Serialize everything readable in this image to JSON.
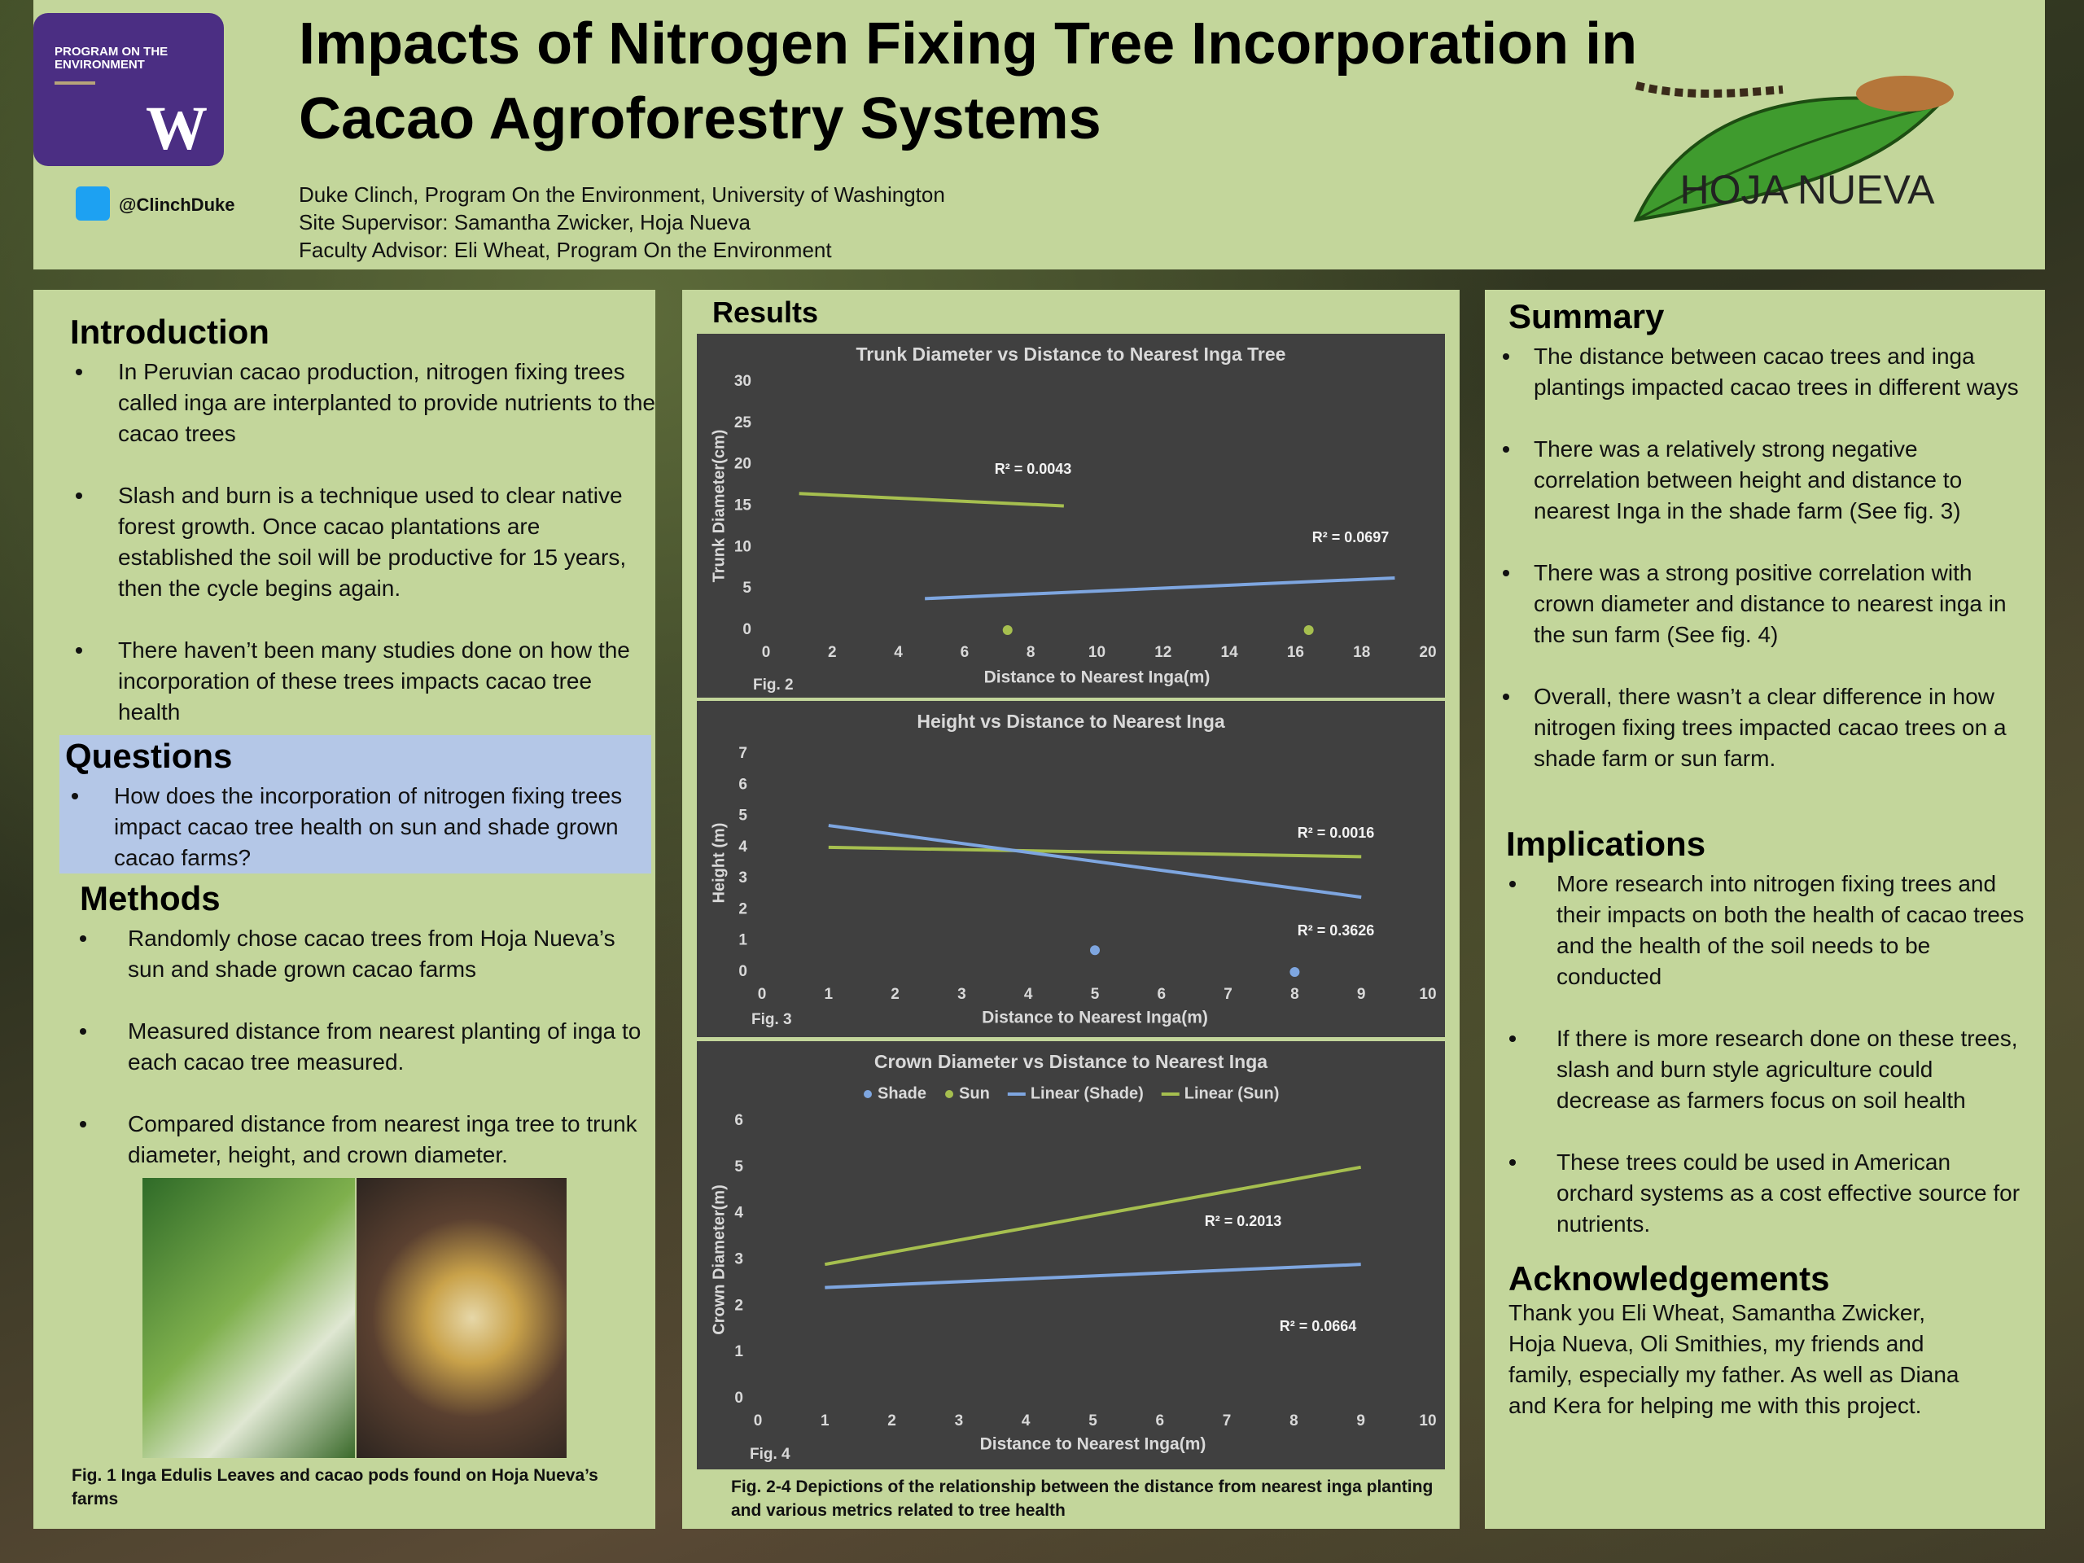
{
  "header": {
    "title_lines": [
      "Impacts of Nitrogen Fixing Tree Incorporation in",
      "Cacao Agroforestry Systems"
    ],
    "authors": [
      "Duke Clinch, Program On the Environment, University of Washington",
      "Site Supervisor: Samantha Zwicker, Hoja Nueva",
      "Faculty Advisor: Eli Wheat, Program On the Environment"
    ],
    "twitter": "@ClinchDuke",
    "uw_logo_text": "PROGRAM ON THE ENVIRONMENT",
    "uw_logo_letter": "W",
    "partner_logo_text": "HOJA NUEVA"
  },
  "introduction": {
    "heading": "Introduction",
    "bullets": [
      "In Peruvian cacao production, nitrogen fixing trees called inga are interplanted to provide nutrients to the cacao trees",
      "Slash and burn is a technique used to clear native forest growth. Once cacao plantations are established the soil will be productive for 15 years, then the cycle begins again.",
      "There haven’t been many studies done on how the incorporation of these trees impacts cacao tree health"
    ]
  },
  "questions": {
    "heading": "Questions",
    "bullets": [
      "How does the incorporation of nitrogen fixing trees impact cacao tree health on sun and shade grown cacao farms?"
    ]
  },
  "methods": {
    "heading": "Methods",
    "bullets": [
      "Randomly chose cacao trees from  Hoja Nueva’s sun and shade grown cacao farms",
      "Measured distance from nearest planting of inga to each cacao tree measured.",
      "Compared distance from nearest inga tree to trunk diameter, height, and crown diameter."
    ]
  },
  "figure1": {
    "caption": "Fig. 1 Inga Edulis Leaves and cacao pods found on Hoja Nueva’s farms"
  },
  "results": {
    "heading": "Results",
    "caption": "Fig. 2-4 Depictions of the relationship between the distance from nearest inga planting and various metrics related to tree health"
  },
  "summary": {
    "heading": "Summary",
    "bullets": [
      "The distance between cacao trees and inga plantings impacted cacao trees in different ways",
      "There was a relatively strong negative correlation between height and distance to nearest Inga in the shade farm (See fig. 3)",
      "There was a strong positive correlation with crown diameter and distance to nearest inga in the sun farm (See fig. 4)",
      "Overall, there wasn’t a clear difference in how nitrogen fixing trees impacted cacao trees on a shade farm or sun farm."
    ]
  },
  "implications": {
    "heading": "Implications",
    "bullets": [
      "More research into nitrogen fixing trees and their impacts on both the health of cacao trees and the health of the soil needs to be conducted",
      "If there is more research done on these trees, slash and burn style agriculture could decrease as farmers focus on soil health",
      "These trees could be used in American orchard systems as a cost effective source for nutrients."
    ]
  },
  "acknowledgements": {
    "heading": "Acknowledgements",
    "text": "Thank you Eli Wheat, Samantha Zwicker, Hoja Nueva, Oli Smithies, my friends and family, especially my father. As well as Diana and Kera for helping me with this project."
  },
  "chart_data": [
    {
      "type": "scatter",
      "title": "Trunk Diameter vs Distance to Nearest Inga Tree",
      "figure_label": "Fig. 2",
      "x_label": "Distance to Nearest Inga(m)",
      "y_label": "Trunk Diameter(cm)",
      "xlim": [
        0,
        20
      ],
      "xticks": [
        0,
        2,
        4,
        6,
        8,
        10,
        12,
        14,
        16,
        18,
        20
      ],
      "ylim": [
        0,
        30
      ],
      "yticks": [
        0,
        5,
        10,
        15,
        20,
        25,
        30
      ],
      "series": [
        {
          "style": "points",
          "color": "#a6bf4f",
          "x": [
            7.3,
            16.4
          ],
          "values": [
            0,
            0
          ]
        },
        {
          "style": "line",
          "color": "#a6bf4f",
          "x": [
            1,
            9
          ],
          "values": [
            16.5,
            15
          ],
          "label": "R² = 0.0043"
        },
        {
          "style": "line",
          "color": "#7ea6e0",
          "x": [
            4.8,
            19
          ],
          "values": [
            3.8,
            6.3
          ],
          "label": "R² = 0.0697"
        }
      ]
    },
    {
      "type": "scatter",
      "title": "Height vs Distance to Nearest Inga",
      "figure_label": "Fig. 3",
      "x_label": "Distance to Nearest Inga(m)",
      "y_label": "Height (m)",
      "xlim": [
        0,
        10
      ],
      "xticks": [
        0,
        1,
        2,
        3,
        4,
        5,
        6,
        7,
        8,
        9,
        10
      ],
      "ylim": [
        0,
        7
      ],
      "yticks": [
        0,
        1,
        2,
        3,
        4,
        5,
        6,
        7
      ],
      "series": [
        {
          "style": "points",
          "color": "#7ea6e0",
          "x": [
            5,
            8
          ],
          "values": [
            0.7,
            0
          ]
        },
        {
          "style": "line",
          "color": "#a6bf4f",
          "x": [
            1,
            9
          ],
          "values": [
            4.0,
            3.7
          ],
          "label": "R² = 0.0016"
        },
        {
          "style": "line",
          "color": "#7ea6e0",
          "x": [
            1,
            9
          ],
          "values": [
            4.7,
            2.4
          ],
          "label": "R² = 0.3626"
        }
      ]
    },
    {
      "type": "scatter",
      "title": "Crown Diameter vs Distance to Nearest Inga",
      "figure_label": "Fig. 4",
      "x_label": "Distance to Nearest Inga(m)",
      "y_label": "Crown Diameter(m)",
      "xlim": [
        0,
        10
      ],
      "xticks": [
        0,
        1,
        2,
        3,
        4,
        5,
        6,
        7,
        8,
        9,
        10
      ],
      "ylim": [
        0,
        6
      ],
      "yticks": [
        0,
        1,
        2,
        3,
        4,
        5,
        6
      ],
      "legend": "top",
      "series": [
        {
          "name": "Shade",
          "style": "points",
          "color": "#7ea6e0",
          "x": [],
          "values": []
        },
        {
          "name": "Sun",
          "style": "points",
          "color": "#a6bf4f",
          "x": [],
          "values": []
        },
        {
          "name": "Linear (Shade)",
          "style": "line",
          "color": "#7ea6e0",
          "x": [
            1,
            9
          ],
          "values": [
            2.4,
            2.9
          ],
          "label": "R² = 0.0664"
        },
        {
          "name": "Linear (Sun)",
          "style": "line",
          "color": "#a6bf4f",
          "x": [
            1,
            9
          ],
          "values": [
            2.9,
            5.0
          ],
          "label": "R² = 0.2013"
        }
      ]
    }
  ]
}
